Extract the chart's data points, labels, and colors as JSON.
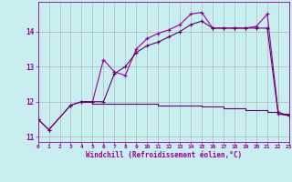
{
  "xlabel": "Windchill (Refroidissement éolien,°C)",
  "background_color": "#c8eef0",
  "line_color1": "#990099",
  "line_color2": "#660066",
  "grid_color": "#aaaaaa",
  "hours": [
    0,
    1,
    2,
    3,
    4,
    5,
    6,
    7,
    8,
    9,
    10,
    11,
    12,
    13,
    14,
    15,
    16,
    17,
    18,
    19,
    20,
    21,
    22,
    23
  ],
  "line1": [
    11.5,
    11.2,
    null,
    11.9,
    12.0,
    12.0,
    13.2,
    12.85,
    12.75,
    13.5,
    13.8,
    13.95,
    14.05,
    14.2,
    14.5,
    14.55,
    14.1,
    14.1,
    14.1,
    14.1,
    14.15,
    14.5,
    11.7,
    11.6
  ],
  "line2": [
    11.5,
    11.2,
    null,
    11.9,
    12.0,
    12.0,
    12.0,
    12.8,
    13.0,
    13.4,
    13.6,
    13.7,
    13.85,
    14.0,
    14.2,
    14.3,
    14.1,
    14.1,
    14.1,
    14.1,
    14.1,
    14.1,
    11.65,
    11.6
  ],
  "line3": [
    null,
    null,
    null,
    null,
    12.0,
    11.95,
    11.95,
    11.95,
    11.95,
    11.95,
    11.95,
    11.9,
    11.9,
    11.9,
    11.9,
    11.85,
    11.85,
    11.8,
    11.8,
    11.75,
    11.75,
    11.7,
    11.65,
    11.6
  ],
  "xlim": [
    0,
    23
  ],
  "ylim": [
    10.85,
    14.85
  ],
  "yticks": [
    11,
    12,
    13,
    14
  ],
  "xticks": [
    0,
    1,
    2,
    3,
    4,
    5,
    6,
    7,
    8,
    9,
    10,
    11,
    12,
    13,
    14,
    15,
    16,
    17,
    18,
    19,
    20,
    21,
    22,
    23
  ]
}
